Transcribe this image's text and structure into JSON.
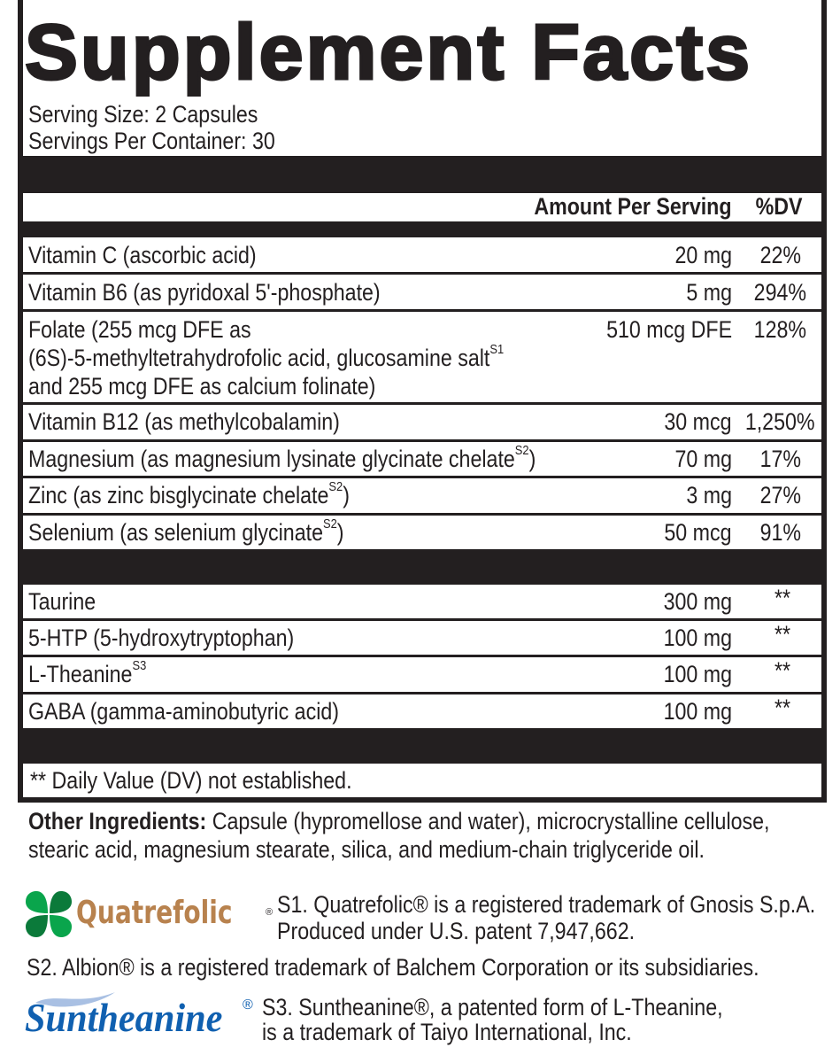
{
  "title": "Supplement Facts",
  "serving_size": "Serving Size: 2 Capsules",
  "servings_per_container": "Servings Per Container: 30",
  "headers": {
    "amount": "Amount Per Serving",
    "dv": "%DV"
  },
  "vitamins": [
    {
      "name": "Vitamin C (ascorbic acid)",
      "sup": "",
      "amount": "20 mg",
      "dv": "22%"
    },
    {
      "name": "Vitamin B6 (as pyridoxal 5'-phosphate)",
      "sup": "",
      "amount": "5 mg",
      "dv": "294%"
    },
    {
      "name_lines": [
        "Folate (255 mcg DFE as",
        "(6S)-5-methyltetrahydrofolic acid, glucosamine salt",
        "and 255 mcg DFE as calcium folinate)"
      ],
      "sup": "S1",
      "amount": "510 mcg DFE",
      "dv": "128%"
    },
    {
      "name": "Vitamin B12 (as methylcobalamin)",
      "sup": "",
      "amount": "30 mcg",
      "dv": "1,250%"
    },
    {
      "name": "Magnesium (as magnesium lysinate glycinate chelate",
      "sup": "S2",
      "close": ")",
      "amount": "70 mg",
      "dv": "17%"
    },
    {
      "name": "Zinc (as zinc bisglycinate chelate",
      "sup": "S2",
      "close": ")",
      "amount": "3 mg",
      "dv": "27%"
    },
    {
      "name": "Selenium (as selenium glycinate",
      "sup": "S2",
      "close": ")",
      "amount": "50 mcg",
      "dv": "91%"
    }
  ],
  "others": [
    {
      "name": "Taurine",
      "sup": "",
      "amount": "300 mg",
      "dv": "**"
    },
    {
      "name": "5-HTP (5-hydroxytryptophan)",
      "sup": "",
      "amount": "100 mg",
      "dv": "**"
    },
    {
      "name": "L-Theanine",
      "sup": "S3",
      "amount": "100 mg",
      "dv": "**"
    },
    {
      "name": "GABA (gamma-aminobutyric acid)",
      "sup": "",
      "amount": "100 mg",
      "dv": "**"
    }
  ],
  "footnote": "** Daily Value (DV) not established.",
  "other_ingredients": {
    "label": "Other Ingredients:",
    "line1": " Capsule (hypromellose and water), microcrystalline cellulose,",
    "line2": "stearic acid, magnesium stearate, silica, and medium-chain triglyceride oil."
  },
  "trademarks": {
    "s1_logo": "Quatrefolic",
    "s1_line1": "S1. Quatrefolic® is a registered trademark of Gnosis S.p.A.",
    "s1_line2": "Produced under U.S. patent 7,947,662.",
    "s2": "S2. Albion® is a registered trademark of Balchem Corporation or its subsidiaries.",
    "s3_logo": "Suntheanine",
    "s3_line1": "S3. Suntheanine®, a patented form of L-Theanine,",
    "s3_line2": "is a trademark of Taiyo International, Inc."
  },
  "colors": {
    "ink": "#231f20",
    "quatrefolic_brown": "#b8824e",
    "clover_green": "#0a9a48",
    "suntheanine_blue": "#1060b0",
    "wave_blue": "#a9c0e3"
  }
}
